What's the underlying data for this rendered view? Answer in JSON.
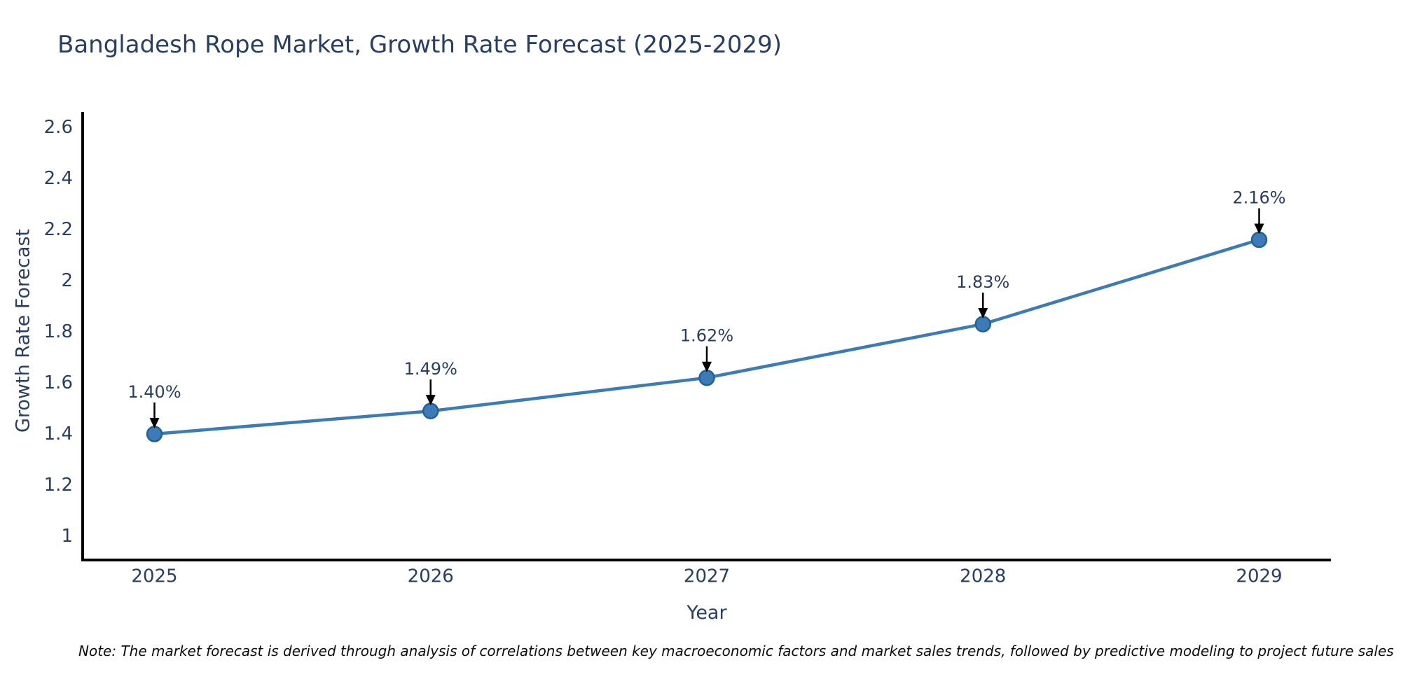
{
  "title": "Bangladesh Rope Market, Growth Rate Forecast (2025-2029)",
  "note": "Note: The market forecast is derived through analysis of correlations between key macroeconomic factors and market sales trends, followed by predictive modeling to project future sales",
  "chart_data": {
    "type": "line",
    "title": "Bangladesh Rope Market, Growth Rate Forecast (2025-2029)",
    "xlabel": "Year",
    "ylabel": "Growth Rate Forecast",
    "x": [
      2025,
      2026,
      2027,
      2028,
      2029
    ],
    "values": [
      1.4,
      1.49,
      1.62,
      1.83,
      2.16
    ],
    "point_labels": [
      "1.40%",
      "1.49%",
      "1.62%",
      "1.83%",
      "2.16%"
    ],
    "yticks": [
      1,
      1.2,
      1.4,
      1.6,
      1.8,
      2,
      2.2,
      2.4,
      2.6
    ],
    "xlim": [
      2024.74,
      2029.26
    ],
    "ylim": [
      0.907,
      2.66
    ],
    "grid": false,
    "legend": "none",
    "colors": {
      "line": "#3d7bb5",
      "marker_fill": "#3c7ab8",
      "marker_edge": "#265f92",
      "axis": "#000000",
      "arrow": "#000000",
      "text": "#2a3f5f"
    }
  }
}
